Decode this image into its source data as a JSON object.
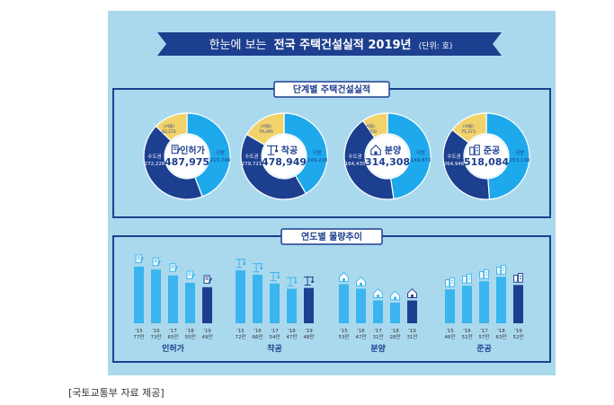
{
  "header": {
    "title_normal": "한눈에 보는",
    "title_bold": "전국 주택건설실적 2019년",
    "unit": "(단위: 호)"
  },
  "section1": {
    "title": "단계별 주택건설실적"
  },
  "section2": {
    "title": "연도별 물량추이"
  },
  "caption": "[국토교통부 자료 제공]",
  "colors": {
    "local": "#1ea9ec",
    "capital": "#1d3f8f",
    "seoul": "#f2d36b",
    "bar": "#3ab5ee",
    "bar_2019": "#1d3f8f",
    "banner": "#1d3f8f",
    "panel": "#aad9ee"
  },
  "chart_data": [
    {
      "type": "pie",
      "title": "단계별 주택건설실적",
      "donuts": [
        {
          "name": "인허가",
          "total": "487,975",
          "icon": "document-pen-icon",
          "slices": [
            {
              "label": "지방",
              "value": 215749,
              "text": "215,749",
              "color": "#1ea9ec"
            },
            {
              "label": "수도권",
              "value": 272226,
              "text": "272,226",
              "color": "#1d3f8f"
            },
            {
              "label": "(서울)",
              "value": 62272,
              "text": "62,272",
              "color": "#f2d36b"
            }
          ]
        },
        {
          "name": "착공",
          "total": "478,949",
          "icon": "crane-icon",
          "slices": [
            {
              "label": "지방",
              "value": 199228,
              "text": "199,228",
              "color": "#1ea9ec"
            },
            {
              "label": "수도권",
              "value": 279721,
              "text": "279,721",
              "color": "#1d3f8f"
            },
            {
              "label": "(서울)",
              "value": 79495,
              "text": "79,495",
              "color": "#f2d36b"
            }
          ]
        },
        {
          "name": "분양",
          "total": "314,308",
          "icon": "house-icon",
          "slices": [
            {
              "label": "지방",
              "value": 149873,
              "text": "149,873",
              "color": "#1ea9ec"
            },
            {
              "label": "수도권",
              "value": 164435,
              "text": "164,435",
              "color": "#1d3f8f"
            },
            {
              "label": "(서울)",
              "value": 30250,
              "text": "30,250",
              "color": "#f2d36b"
            }
          ]
        },
        {
          "name": "준공",
          "total": "518,084",
          "icon": "buildings-icon",
          "slices": [
            {
              "label": "지방",
              "value": 253138,
              "text": "253,138",
              "color": "#1ea9ec"
            },
            {
              "label": "수도권",
              "value": 264946,
              "text": "264,946",
              "color": "#1d3f8f"
            },
            {
              "label": "(서울)",
              "value": 75373,
              "text": "75,373",
              "color": "#f2d36b"
            }
          ]
        }
      ]
    },
    {
      "type": "bar",
      "title": "연도별 물량추이",
      "groups": [
        {
          "name": "인허가",
          "icon": "document-pen-icon",
          "bars": [
            {
              "year": "'15",
              "label": "77만",
              "value": 77
            },
            {
              "year": "'16",
              "label": "73만",
              "value": 73
            },
            {
              "year": "'17",
              "label": "65만",
              "value": 65
            },
            {
              "year": "'18",
              "label": "55만",
              "value": 55
            },
            {
              "year": "'19",
              "label": "49만",
              "value": 49
            }
          ]
        },
        {
          "name": "착공",
          "icon": "crane-icon",
          "bars": [
            {
              "year": "'15",
              "label": "72만",
              "value": 72
            },
            {
              "year": "'16",
              "label": "66만",
              "value": 66
            },
            {
              "year": "'17",
              "label": "54만",
              "value": 54
            },
            {
              "year": "'18",
              "label": "47만",
              "value": 47
            },
            {
              "year": "'19",
              "label": "48만",
              "value": 48
            }
          ]
        },
        {
          "name": "분양",
          "icon": "house-icon",
          "bars": [
            {
              "year": "'15",
              "label": "53만",
              "value": 53
            },
            {
              "year": "'16",
              "label": "47만",
              "value": 47
            },
            {
              "year": "'17",
              "label": "31만",
              "value": 31
            },
            {
              "year": "'18",
              "label": "28만",
              "value": 28
            },
            {
              "year": "'19",
              "label": "31만",
              "value": 31
            }
          ]
        },
        {
          "name": "준공",
          "icon": "buildings-icon",
          "bars": [
            {
              "year": "'15",
              "label": "46만",
              "value": 46
            },
            {
              "year": "'16",
              "label": "51만",
              "value": 51
            },
            {
              "year": "'17",
              "label": "57만",
              "value": 57
            },
            {
              "year": "'18",
              "label": "63만",
              "value": 63
            },
            {
              "year": "'19",
              "label": "52만",
              "value": 52
            }
          ]
        }
      ]
    }
  ]
}
